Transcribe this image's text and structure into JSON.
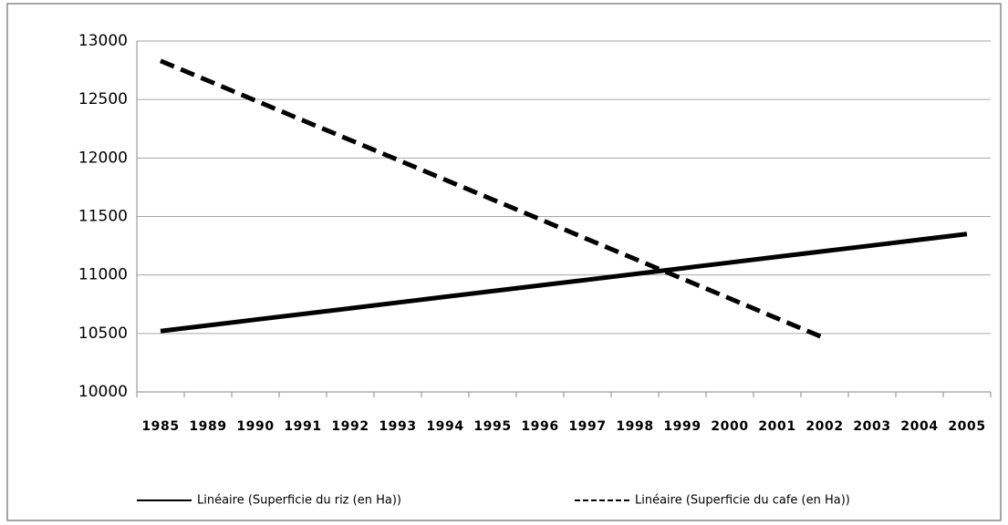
{
  "chart_data": {
    "type": "line",
    "categories": [
      "1985",
      "1989",
      "1990",
      "1991",
      "1992",
      "1993",
      "1994",
      "1995",
      "1996",
      "1997",
      "1998",
      "1999",
      "2000",
      "2001",
      "2002",
      "2003",
      "2004",
      "2005"
    ],
    "series": [
      {
        "name": "Linéaire (Superficie du riz (en Ha))",
        "color": "#000000",
        "dash": "solid",
        "values": [
          10520,
          10569,
          10618,
          10666,
          10715,
          10764,
          10813,
          10862,
          10911,
          10959,
          11008,
          11057,
          11106,
          11155,
          11204,
          11252,
          11301,
          11350
        ]
      },
      {
        "name": "Linéaire (Superficie du cafe (en Ha))",
        "color": "#000000",
        "dash": "dashed",
        "values": [
          12830,
          12661,
          12491,
          12322,
          12153,
          11984,
          11814,
          11645,
          11476,
          11306,
          11137,
          10968,
          10799,
          10629,
          10460,
          null,
          null,
          null
        ]
      }
    ],
    "ylim": [
      10000,
      13000
    ],
    "yticks": [
      10000,
      10500,
      11000,
      11500,
      12000,
      12500,
      13000
    ],
    "grid": true,
    "legend": "bottom"
  }
}
